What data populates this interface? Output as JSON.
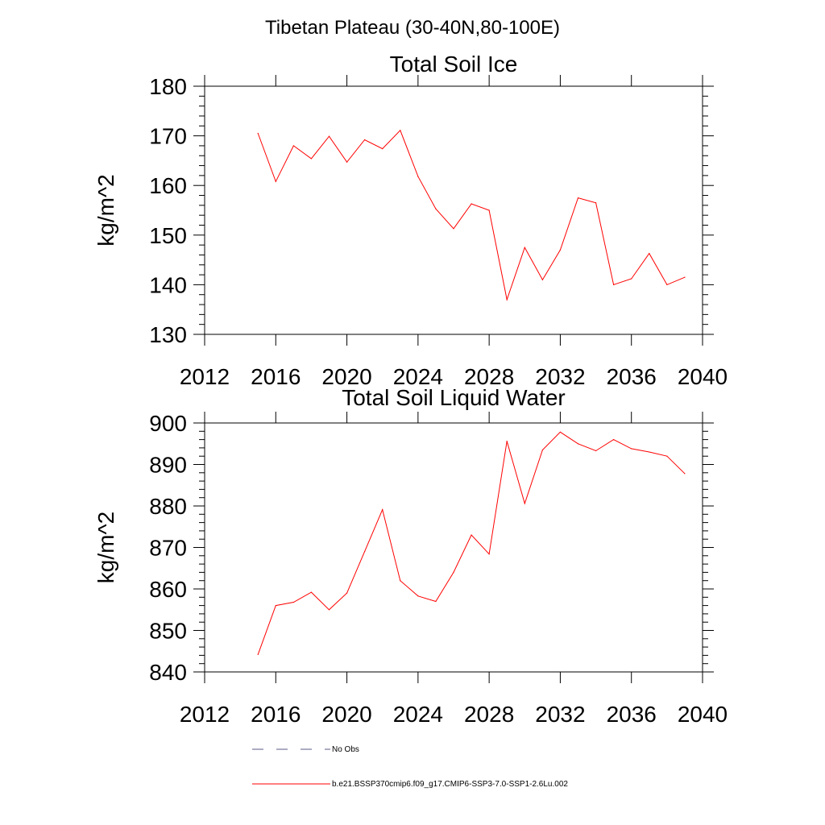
{
  "figure_title": "Tibetan Plateau (30-40N,80-100E)",
  "chart_data": [
    {
      "type": "line",
      "title": "Total Soil Ice",
      "xlabel": "",
      "ylabel": "kg/m^2",
      "xlim": [
        2012,
        2040
      ],
      "ylim": [
        130,
        180
      ],
      "x_ticks": [
        2012,
        2016,
        2020,
        2024,
        2028,
        2032,
        2036,
        2040
      ],
      "y_ticks": [
        130,
        140,
        150,
        160,
        170,
        180
      ],
      "x": [
        2015,
        2016,
        2017,
        2018,
        2019,
        2020,
        2021,
        2022,
        2023,
        2024,
        2025,
        2026,
        2027,
        2028,
        2029,
        2030,
        2031,
        2032,
        2033,
        2034,
        2035,
        2036,
        2037,
        2038,
        2039
      ],
      "series": [
        {
          "name": "b.e21.BSSP370cmip6.f09_g17.CMIP6-SSP3-7.0-SSP1-2.6Lu.002",
          "color": "#ff0000",
          "values": [
            170.5,
            160.8,
            168.0,
            165.4,
            169.9,
            164.7,
            169.2,
            167.4,
            171.1,
            161.8,
            155.3,
            151.3,
            156.3,
            155.0,
            137.0,
            147.5,
            141.0,
            147.0,
            157.5,
            156.5,
            140.0,
            141.2,
            146.3,
            140.0,
            141.5
          ]
        }
      ]
    },
    {
      "type": "line",
      "title": "Total Soil Liquid Water",
      "xlabel": "",
      "ylabel": "kg/m^2",
      "xlim": [
        2012,
        2040
      ],
      "ylim": [
        840,
        900
      ],
      "x_ticks": [
        2012,
        2016,
        2020,
        2024,
        2028,
        2032,
        2036,
        2040
      ],
      "y_ticks": [
        840,
        850,
        860,
        870,
        880,
        890,
        900
      ],
      "x": [
        2015,
        2016,
        2017,
        2018,
        2019,
        2020,
        2021,
        2022,
        2023,
        2024,
        2025,
        2026,
        2027,
        2028,
        2029,
        2030,
        2031,
        2032,
        2033,
        2034,
        2035,
        2036,
        2037,
        2038,
        2039
      ],
      "series": [
        {
          "name": "b.e21.BSSP370cmip6.f09_g17.CMIP6-SSP3-7.0-SSP1-2.6Lu.002",
          "color": "#ff0000",
          "values": [
            844.2,
            856.0,
            856.8,
            859.2,
            855.0,
            859.0,
            869.0,
            879.1,
            862.0,
            858.3,
            857.0,
            864.0,
            873.0,
            868.4,
            895.6,
            880.6,
            893.5,
            897.8,
            895.0,
            893.3,
            896.0,
            893.8,
            893.0,
            892.0,
            887.8
          ]
        }
      ]
    }
  ],
  "legend": {
    "placement": "bottom",
    "entries": [
      {
        "label": "No Obs",
        "style": "dashed",
        "color": "#5a5a8a"
      },
      {
        "label": "b.e21.BSSP370cmip6.f09_g17.CMIP6-SSP3-7.0-SSP1-2.6Lu.002",
        "style": "solid",
        "color": "#ff0000"
      }
    ]
  }
}
